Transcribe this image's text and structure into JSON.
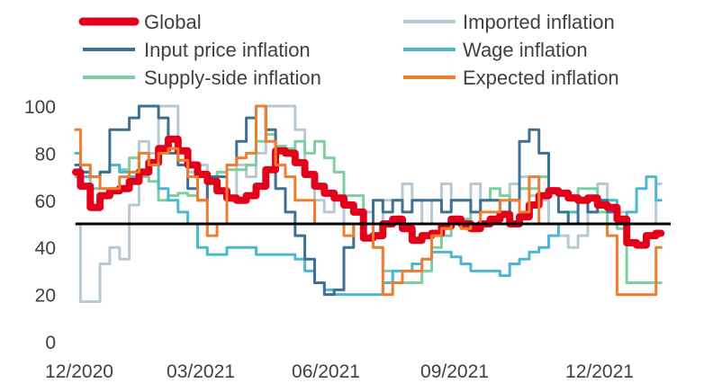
{
  "chart_data": {
    "type": "line",
    "title": "",
    "xlabel": "",
    "ylabel": "",
    "ylim": [
      0,
      100
    ],
    "yticks": [
      0,
      20,
      40,
      60,
      80,
      100
    ],
    "x_ticks": [
      "12/2020",
      "03/2021",
      "06/2021",
      "09/2021",
      "12/2021"
    ],
    "x_range": [
      0,
      61
    ],
    "reference_line": {
      "y": 50,
      "color": "#000000"
    },
    "legend": {
      "placement": "top",
      "columns": 2
    },
    "series": [
      {
        "name": "Global",
        "color": "#E2001A",
        "x": [
          0,
          1,
          2,
          3,
          4,
          5,
          6,
          7,
          8,
          9,
          10,
          11,
          12,
          13,
          14,
          15,
          16,
          17,
          18,
          19,
          20,
          21,
          22,
          23,
          24,
          25,
          26,
          27,
          28,
          29,
          30,
          31,
          32,
          33,
          34,
          35,
          36,
          37,
          38,
          39,
          40,
          41,
          42,
          43,
          44,
          45,
          46,
          47,
          48,
          49,
          50,
          51,
          52,
          53,
          54,
          55,
          56,
          57,
          58,
          59,
          60
        ],
        "values": [
          72,
          66,
          57,
          62,
          64,
          65,
          68,
          72,
          76,
          82,
          86,
          81,
          75,
          71,
          68,
          64,
          61,
          60,
          62,
          66,
          73,
          81,
          80,
          76,
          71,
          66,
          63,
          61,
          58,
          55,
          44,
          45,
          50,
          52,
          48,
          43,
          45,
          46,
          49,
          52,
          50,
          48,
          50,
          52,
          54,
          50,
          53,
          58,
          62,
          64,
          63,
          61,
          60,
          61,
          58,
          57,
          52,
          42,
          41,
          45,
          46
        ]
      },
      {
        "name": "Imported inflation",
        "color": "#B7C9D3",
        "x": [
          0,
          1,
          2,
          3,
          4,
          5,
          6,
          7,
          8,
          9,
          10,
          11,
          12,
          13,
          14,
          15,
          16,
          17,
          18,
          19,
          20,
          21,
          22,
          23,
          24,
          25,
          26,
          27,
          28,
          29,
          30,
          31,
          32,
          33,
          34,
          35,
          36,
          37,
          38,
          39,
          40,
          41,
          42,
          43,
          44,
          45,
          46,
          47,
          48,
          49,
          50,
          51,
          52,
          53,
          54,
          55,
          56,
          57,
          58,
          59,
          60
        ],
        "values": [
          50,
          17,
          17,
          33,
          40,
          35,
          58,
          85,
          80,
          100,
          100,
          80,
          72,
          75,
          68,
          65,
          60,
          75,
          70,
          80,
          100,
          100,
          100,
          90,
          70,
          60,
          55,
          60,
          50,
          50,
          55,
          50,
          60,
          60,
          67,
          60,
          50,
          60,
          67,
          60,
          60,
          67,
          60,
          60,
          55,
          67,
          70,
          62,
          60,
          50,
          45,
          40,
          45,
          55,
          67,
          60,
          55,
          50,
          50,
          50,
          67
        ]
      },
      {
        "name": "Input price inflation",
        "color": "#3E6F94",
        "x": [
          0,
          1,
          2,
          3,
          4,
          5,
          6,
          7,
          8,
          9,
          10,
          11,
          12,
          13,
          14,
          15,
          16,
          17,
          18,
          19,
          20,
          21,
          22,
          23,
          24,
          25,
          26,
          27,
          28,
          29,
          30,
          31,
          32,
          33,
          34,
          35,
          36,
          37,
          38,
          39,
          40,
          41,
          42,
          43,
          44,
          45,
          46,
          47,
          48,
          49,
          50,
          51,
          52,
          53,
          54,
          55,
          56,
          57,
          58,
          59,
          60
        ],
        "values": [
          75,
          72,
          70,
          72,
          90,
          90,
          95,
          100,
          100,
          95,
          80,
          75,
          65,
          60,
          70,
          70,
          75,
          85,
          95,
          100,
          90,
          65,
          55,
          45,
          35,
          25,
          20,
          22,
          40,
          50,
          50,
          60,
          55,
          60,
          55,
          60,
          60,
          60,
          55,
          60,
          60,
          55,
          60,
          60,
          55,
          60,
          85,
          90,
          80,
          65,
          55,
          50,
          60,
          55,
          60,
          55,
          50,
          50,
          50,
          50,
          50
        ]
      },
      {
        "name": "Wage inflation",
        "color": "#4BB8CF",
        "x": [
          0,
          1,
          2,
          3,
          4,
          5,
          6,
          7,
          8,
          9,
          10,
          11,
          12,
          13,
          14,
          15,
          16,
          17,
          18,
          19,
          20,
          21,
          22,
          23,
          24,
          25,
          26,
          27,
          28,
          29,
          30,
          31,
          32,
          33,
          34,
          35,
          36,
          37,
          38,
          39,
          40,
          41,
          42,
          43,
          44,
          45,
          46,
          47,
          48,
          49,
          50,
          51,
          52,
          53,
          54,
          55,
          56,
          57,
          58,
          59,
          60
        ],
        "values": [
          80,
          70,
          70,
          72,
          75,
          72,
          70,
          72,
          75,
          65,
          60,
          55,
          50,
          40,
          37,
          37,
          40,
          40,
          40,
          37,
          37,
          37,
          37,
          35,
          30,
          25,
          22,
          20,
          20,
          20,
          20,
          20,
          25,
          30,
          30,
          33,
          35,
          38,
          38,
          36,
          33,
          30,
          30,
          30,
          28,
          33,
          35,
          38,
          40,
          45,
          50,
          55,
          60,
          60,
          60,
          60,
          50,
          55,
          65,
          70,
          60
        ]
      },
      {
        "name": "Supply-side inflation",
        "color": "#7ECFA0",
        "x": [
          0,
          1,
          2,
          3,
          4,
          5,
          6,
          7,
          8,
          9,
          10,
          11,
          12,
          13,
          14,
          15,
          16,
          17,
          18,
          19,
          20,
          21,
          22,
          23,
          24,
          25,
          26,
          27,
          28,
          29,
          30,
          31,
          32,
          33,
          34,
          35,
          36,
          37,
          38,
          39,
          40,
          41,
          42,
          43,
          44,
          45,
          46,
          47,
          48,
          49,
          50,
          51,
          52,
          53,
          54,
          55,
          56,
          57,
          58,
          59,
          60
        ],
        "values": [
          70,
          75,
          65,
          72,
          75,
          73,
          78,
          70,
          68,
          60,
          62,
          63,
          62,
          60,
          70,
          72,
          73,
          73,
          75,
          85,
          88,
          83,
          82,
          85,
          80,
          85,
          78,
          72,
          62,
          62,
          50,
          40,
          30,
          25,
          25,
          25,
          30,
          40,
          45,
          50,
          52,
          55,
          60,
          65,
          62,
          60,
          65,
          65,
          70,
          65,
          62,
          62,
          65,
          65,
          55,
          50,
          48,
          25,
          25,
          25,
          25
        ]
      },
      {
        "name": "Expected inflation",
        "color": "#F07D2E",
        "x": [
          0,
          1,
          2,
          3,
          4,
          5,
          6,
          7,
          8,
          9,
          10,
          11,
          12,
          13,
          14,
          15,
          16,
          17,
          18,
          19,
          20,
          21,
          22,
          23,
          24,
          25,
          26,
          27,
          28,
          29,
          30,
          31,
          32,
          33,
          34,
          35,
          36,
          37,
          38,
          39,
          40,
          41,
          42,
          43,
          44,
          45,
          46,
          47,
          48,
          49,
          50,
          51,
          52,
          53,
          54,
          55,
          56,
          57,
          58,
          59,
          60
        ],
        "values": [
          90,
          75,
          70,
          65,
          65,
          70,
          72,
          80,
          75,
          80,
          82,
          77,
          70,
          60,
          45,
          50,
          75,
          78,
          80,
          100,
          85,
          75,
          70,
          60,
          60,
          50,
          50,
          50,
          45,
          50,
          50,
          40,
          20,
          25,
          30,
          30,
          35,
          45,
          48,
          50,
          48,
          50,
          55,
          55,
          60,
          60,
          55,
          70,
          50,
          50,
          50,
          50,
          50,
          50,
          50,
          45,
          20,
          20,
          20,
          20,
          40
        ]
      }
    ]
  }
}
